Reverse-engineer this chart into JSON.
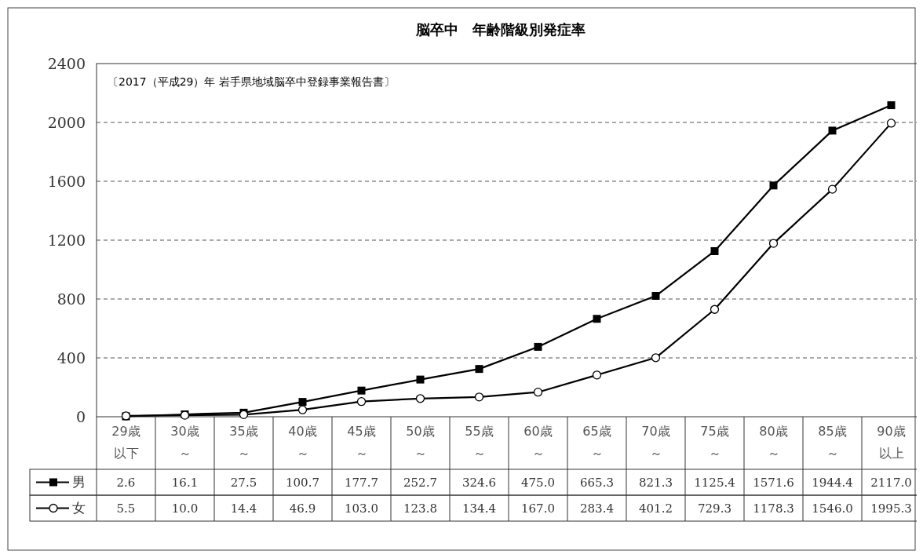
{
  "chart_data": {
    "type": "line",
    "title": "脳卒中　年齢階級別発症率",
    "annotations": [
      "〔2017（平成29）年 岩手県地域脳卒中登録事業報告書〕"
    ],
    "categories": [
      "29歳以下",
      "30歳～",
      "35歳～",
      "40歳～",
      "45歳～",
      "50歳～",
      "55歳～",
      "60歳～",
      "65歳～",
      "70歳～",
      "75歳～",
      "80歳～",
      "85歳～",
      "90歳以上"
    ],
    "series": [
      {
        "name": "男",
        "color": "#000000",
        "marker": "square",
        "values": [
          2.6,
          16.1,
          27.5,
          100.7,
          177.7,
          252.7,
          324.6,
          475.0,
          665.3,
          821.3,
          1125.4,
          1571.6,
          1944.4,
          2117.0
        ],
        "value_labels": [
          "2.6",
          "16.1",
          "27.5",
          "100.7",
          "177.7",
          "252.7",
          "324.6",
          "475.0",
          "665.3",
          "821.3",
          "1125.4",
          "1571.6",
          "1944.4",
          "2117.0"
        ]
      },
      {
        "name": "女",
        "color": "#000000",
        "marker": "circle",
        "values": [
          5.5,
          10.0,
          14.4,
          46.9,
          103.0,
          123.8,
          134.4,
          167.0,
          283.4,
          401.2,
          729.3,
          1178.3,
          1546.0,
          1995.3
        ],
        "value_labels": [
          "5.5",
          "10.0",
          "14.4",
          "46.9",
          "103.0",
          "123.8",
          "134.4",
          "167.0",
          "283.4",
          "401.2",
          "729.3",
          "1178.3",
          "1546.0",
          "1995.3"
        ]
      }
    ],
    "ylim": [
      0,
      2400
    ],
    "yticks": [
      0,
      400,
      800,
      1200,
      1600,
      2000,
      2400
    ],
    "grid": "y",
    "legend": "bottom left",
    "data_labels": true
  }
}
